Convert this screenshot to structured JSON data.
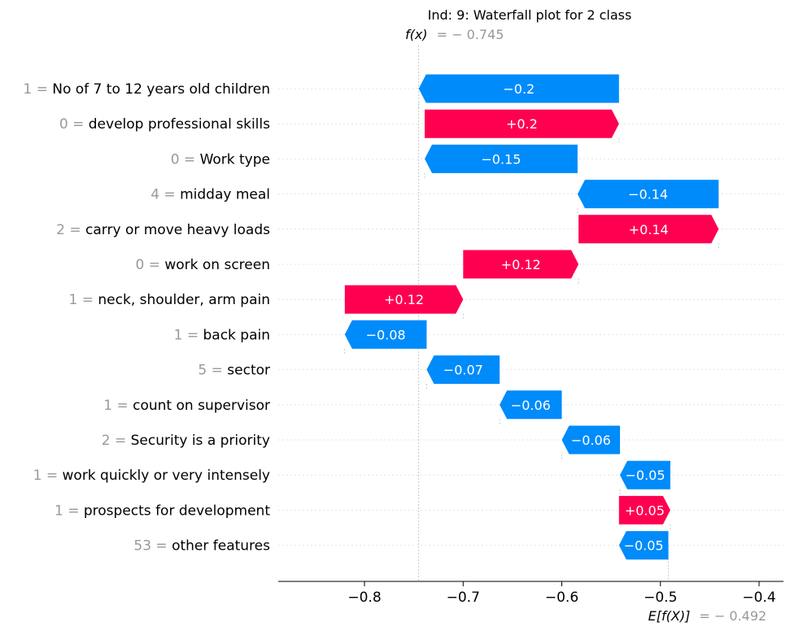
{
  "chart_data": {
    "type": "waterfall",
    "title": "Ind: 9: Waterfall plot for 2 class",
    "fx_label": "f(x)",
    "fx_value": "= − 0.745",
    "ex_label": "E[f(X)]",
    "ex_value": "= − 0.492",
    "base_value": -0.492,
    "output_value": -0.745,
    "xlim": [
      -0.88,
      -0.36
    ],
    "xticks": [
      -0.8,
      -0.7,
      -0.6,
      -0.5,
      -0.4
    ],
    "xtick_labels": [
      "−0.8",
      "−0.7",
      "−0.6",
      "−0.5",
      "−0.4"
    ],
    "colors": {
      "positive": "#ff0051",
      "negative": "#008bfb"
    },
    "features": [
      {
        "value": "1",
        "name": "No of 7 to 12 years old children",
        "start": -0.542,
        "end": -0.745,
        "label": "−0.2"
      },
      {
        "value": "0",
        "name": "develop professional skills",
        "start": -0.739,
        "end": -0.542,
        "label": "+0.2"
      },
      {
        "value": "0",
        "name": "Work type",
        "start": -0.584,
        "end": -0.739,
        "label": "−0.15"
      },
      {
        "value": "4",
        "name": "midday meal",
        "start": -0.441,
        "end": -0.584,
        "label": "−0.14"
      },
      {
        "value": "2",
        "name": "carry or move heavy loads",
        "start": -0.583,
        "end": -0.441,
        "label": "+0.14"
      },
      {
        "value": "0",
        "name": "work on screen",
        "start": -0.7,
        "end": -0.583,
        "label": "+0.12"
      },
      {
        "value": "1",
        "name": "neck, shoulder, arm pain",
        "start": -0.82,
        "end": -0.7,
        "label": "+0.12"
      },
      {
        "value": "1",
        "name": "back pain",
        "start": -0.737,
        "end": -0.82,
        "label": "−0.08"
      },
      {
        "value": "5",
        "name": "sector",
        "start": -0.663,
        "end": -0.737,
        "label": "−0.07"
      },
      {
        "value": "1",
        "name": "count on supervisor",
        "start": -0.6,
        "end": -0.663,
        "label": "−0.06"
      },
      {
        "value": "2",
        "name": "Security is a priority",
        "start": -0.541,
        "end": -0.6,
        "label": "−0.06"
      },
      {
        "value": "1",
        "name": "work quickly or very intensely",
        "start": -0.49,
        "end": -0.541,
        "label": "−0.05"
      },
      {
        "value": "1",
        "name": "prospects for development",
        "start": -0.542,
        "end": -0.49,
        "label": "+0.05"
      },
      {
        "value": "53",
        "name": "other features",
        "start": -0.492,
        "end": -0.542,
        "label": "−0.05"
      }
    ]
  }
}
